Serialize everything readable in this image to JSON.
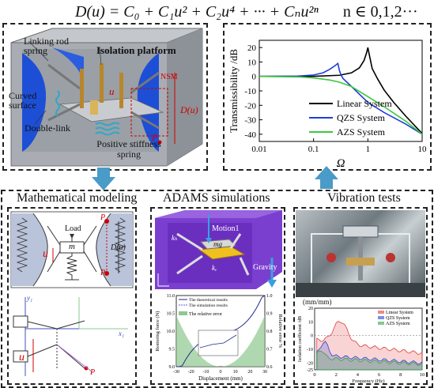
{
  "formula": {
    "lhs": "D(u) = C",
    "terms": "D(u) = C₀ + C₁u² + C₂u⁴ + ··· + Cₙu²ⁿ",
    "domain": "n ∈ 0,1,2···"
  },
  "isolator": {
    "linking_rod_spring": "Linking rod spring",
    "isolation_platform": "Isolation platform",
    "curved_surface": "Curved surface",
    "double_link": "Double-link",
    "positive_stiffness_spring": "Positive stiffness spring",
    "nsm": "NSM",
    "u": "u",
    "du": "D(u)",
    "p": "P"
  },
  "chart_data": {
    "type": "line",
    "ylabel": "Transmissibility /dB",
    "xlabel": "Ω",
    "xscale": "log",
    "xlim": [
      0.01,
      10
    ],
    "ylim": [
      -45,
      25
    ],
    "xticks": [
      "0.01",
      "0.1",
      "1",
      "10"
    ],
    "yticks": [
      "20",
      "10",
      "0",
      "-10",
      "-20",
      "-30",
      "-40"
    ],
    "series": [
      {
        "name": "Linear System",
        "color": "#000000",
        "x": [
          0.01,
          0.1,
          0.3,
          0.5,
          0.7,
          0.85,
          0.95,
          1.0,
          1.05,
          1.2,
          1.5,
          2,
          3,
          5,
          10
        ],
        "y": [
          0,
          0.1,
          0.8,
          2.5,
          6,
          11,
          16.5,
          20,
          16,
          5.5,
          -1.5,
          -9.5,
          -18,
          -27.5,
          -39.5
        ]
      },
      {
        "name": "QZS System",
        "color": "#1f3fd6",
        "x": [
          0.01,
          0.05,
          0.1,
          0.15,
          0.2,
          0.25,
          0.28,
          0.3,
          0.32,
          0.35,
          0.5,
          1,
          2,
          5,
          10
        ],
        "y": [
          0,
          0.2,
          1,
          2.5,
          5,
          7.5,
          9,
          4,
          1,
          -1.5,
          -7,
          -18,
          -25,
          -33,
          -40
        ]
      },
      {
        "name": "AZS System",
        "color": "#3cc83c",
        "x": [
          0.01,
          0.05,
          0.1,
          0.2,
          0.3,
          0.5,
          1,
          2,
          5,
          10
        ],
        "y": [
          0,
          -0.3,
          -1,
          -2.5,
          -4,
          -7,
          -14,
          -21,
          -31,
          -40
        ]
      }
    ]
  },
  "panels": {
    "math_title": "Mathematical modeling",
    "adams_title": "ADAMS simulations",
    "vib_title": "Vibration tests"
  },
  "math": {
    "load": "Load",
    "m": "m",
    "u": "u",
    "du": "D(u)",
    "p": "P",
    "yl": "y₁",
    "xl": "x₁",
    "o": "O",
    "a": "a"
  },
  "adams": {
    "motion": "Motion1",
    "gravity": "Gravity",
    "mg": "mg",
    "kh": "kₕ",
    "kv": "kᵥ",
    "legend_theory": "The theoretical results",
    "legend_sim": "The simulation results",
    "legend_err": "The relative error",
    "ylabel": "Restoring force (N)",
    "ylabel2": "Relative error %",
    "xlabel": "Displacement (mm)",
    "xticks": [
      "-30",
      "-20",
      "-10",
      "0",
      "10",
      "20",
      "30"
    ],
    "yticks": [
      "11.0",
      "10.5",
      "10.0",
      "9.5",
      "9.0"
    ],
    "y2ticks": [
      "1.0",
      "0.9",
      "0.8",
      "0.7",
      "0.6"
    ]
  },
  "vib": {
    "unit": "(mm/mm)",
    "ylabel": "Isolation coefficient /dB",
    "xlabel": "Frequency (Hz)",
    "xticks": [
      "0",
      "2",
      "4",
      "6",
      "8",
      "10"
    ],
    "yticks": [
      "20",
      "10",
      "0",
      "-10",
      "-20",
      "-25"
    ],
    "legend": [
      "Linear System",
      "QZS System",
      "AZS System"
    ]
  }
}
